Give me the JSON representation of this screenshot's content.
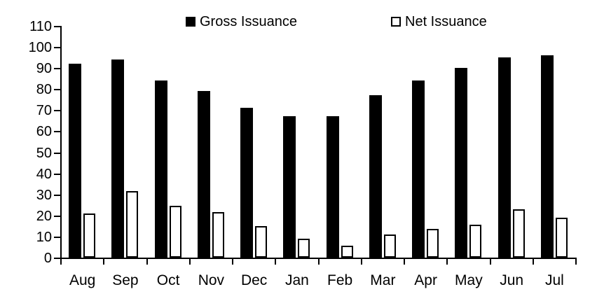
{
  "chart_data": {
    "type": "bar",
    "categories": [
      "Aug",
      "Sep",
      "Oct",
      "Nov",
      "Dec",
      "Jan",
      "Feb",
      "Mar",
      "Apr",
      "May",
      "Jun",
      "Jul"
    ],
    "series": [
      {
        "name": "Gross Issuance",
        "swatch": "filled-black-square",
        "fill": "#000000",
        "values": [
          92,
          94,
          84,
          79,
          71,
          67,
          67,
          77,
          84,
          90,
          95,
          96
        ]
      },
      {
        "name": "Net Issuance",
        "swatch": "outlined-white-square",
        "fill": "#ffffff",
        "stroke": "#000000",
        "values": [
          21,
          31.5,
          24.5,
          21.5,
          15,
          9,
          5.5,
          11,
          13.5,
          15.5,
          23,
          19
        ]
      }
    ],
    "title": "",
    "xlabel": "",
    "ylabel": "",
    "ylim": [
      0,
      110
    ],
    "yticks": [
      0,
      10,
      20,
      30,
      40,
      50,
      60,
      70,
      80,
      90,
      100,
      110
    ],
    "grid": false,
    "legend_position": "top"
  },
  "colors": {
    "background": "#ffffff",
    "axis": "#000000",
    "text": "#000000",
    "gross_bar": "#000000",
    "net_bar_fill": "#ffffff",
    "net_bar_outline": "#000000"
  }
}
